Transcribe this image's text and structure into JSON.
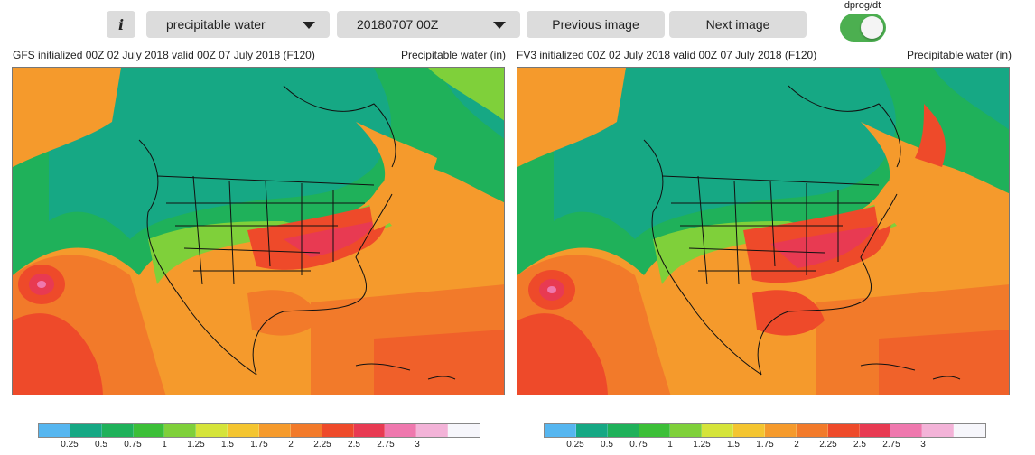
{
  "toolbar": {
    "info_label": "i",
    "product_value": "precipitable water",
    "cycle_value": "20180707 00Z",
    "prev_label": "Previous image",
    "next_label": "Next image",
    "toggle_label": "dprog/dt",
    "toggle_on": true
  },
  "panels": [
    {
      "title": "GFS initialized 00Z 02 July 2018 valid 00Z 07 July 2018 (F120)",
      "variable": "Precipitable water (in)"
    },
    {
      "title": "FV3 initialized 00Z 02 July 2018 valid 00Z 07 July 2018 (F120)",
      "variable": "Precipitable water (in)"
    }
  ],
  "colorbar": {
    "colors": [
      "#56b6f0",
      "#16a884",
      "#1fb15a",
      "#3cbf38",
      "#7fd03a",
      "#d5e43a",
      "#f4c530",
      "#f59a2c",
      "#f27a2a",
      "#ee4a2a",
      "#e83a52",
      "#ef78ae",
      "#f3b3d8",
      "#f6f6fb"
    ],
    "ticks": [
      "0.25",
      "0.5",
      "0.75",
      "1",
      "1.25",
      "1.5",
      "1.75",
      "2",
      "2.25",
      "2.5",
      "2.75",
      "3"
    ]
  }
}
